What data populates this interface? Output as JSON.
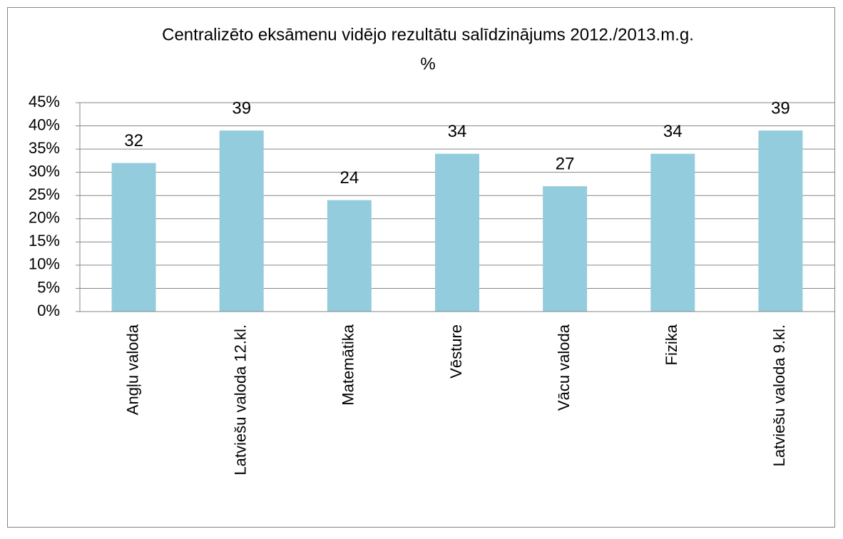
{
  "chart_data": {
    "type": "bar",
    "title": "Centralizēto eksāmenu vidējo rezultātu salīdzinājums 2012./2013.m.g.",
    "subtitle": "%",
    "categories": [
      "Angļu valoda",
      "Latviešu valoda 12.kl.",
      "Matemātika",
      "Vēsture",
      "Vācu valoda",
      "Fizika",
      "Latviešu valoda 9.kl."
    ],
    "values": [
      32,
      39,
      24,
      34,
      27,
      34,
      39
    ],
    "color": "#93cddd",
    "ylim": [
      0,
      45
    ],
    "yticks": [
      {
        "value": 0,
        "label": "0%"
      },
      {
        "value": 5,
        "label": "5%"
      },
      {
        "value": 10,
        "label": "10%"
      },
      {
        "value": 15,
        "label": "15%"
      },
      {
        "value": 20,
        "label": "20%"
      },
      {
        "value": 25,
        "label": "25%"
      },
      {
        "value": 30,
        "label": "30%"
      },
      {
        "value": 35,
        "label": "35%"
      },
      {
        "value": 40,
        "label": "40%"
      },
      {
        "value": 45,
        "label": "45%"
      }
    ],
    "grid": true
  }
}
